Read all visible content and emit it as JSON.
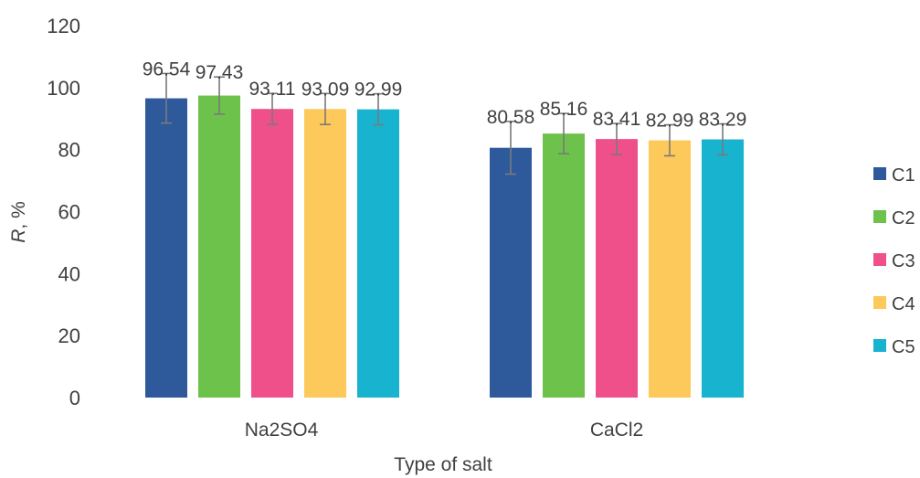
{
  "chart_data": {
    "type": "bar",
    "categories": [
      "Na2SO4",
      "CaCl2"
    ],
    "series": [
      {
        "name": "C1",
        "values": [
          96.54,
          80.58
        ],
        "error": [
          8.0,
          8.5
        ],
        "labels": [
          "96.54",
          "80.58"
        ],
        "color": "#2e5a9c"
      },
      {
        "name": "C2",
        "values": [
          97.43,
          85.16
        ],
        "error": [
          6.0,
          6.5
        ],
        "labels": [
          "97.43",
          "85.16"
        ],
        "color": "#6cc24a"
      },
      {
        "name": "C3",
        "values": [
          93.11,
          83.41
        ],
        "error": [
          5.0,
          5.0
        ],
        "labels": [
          "93.11",
          "83.41"
        ],
        "color": "#f0508a"
      },
      {
        "name": "C4",
        "values": [
          93.09,
          82.99
        ],
        "error": [
          5.0,
          5.0
        ],
        "labels": [
          "93.09",
          "82.99"
        ],
        "color": "#fcc95a"
      },
      {
        "name": "C5",
        "values": [
          92.99,
          83.29
        ],
        "error": [
          5.0,
          5.0
        ],
        "labels": [
          "92.99",
          "83.29"
        ],
        "color": "#17b3cf"
      }
    ],
    "ylim": [
      0,
      120
    ],
    "yticks": [
      0,
      20,
      40,
      60,
      80,
      100,
      120
    ],
    "xlabel": "Type of salt",
    "ylabel": "R, %",
    "grid": false,
    "legend_position": "right"
  }
}
